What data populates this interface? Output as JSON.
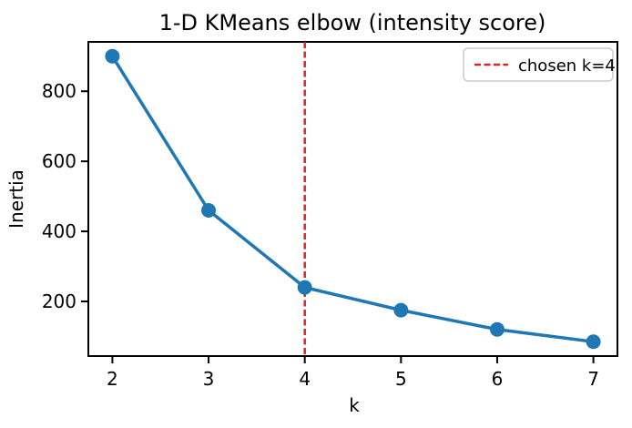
{
  "figure": {
    "background": "#ffffff",
    "spine_color": "#000000",
    "text_color": "#000000",
    "legend_border_color": "#cccccc",
    "legend_background": "#ffffff"
  },
  "chart_data": {
    "type": "line",
    "title": "1-D KMeans elbow (intensity score)",
    "xlabel": "k",
    "ylabel": "Inertia",
    "x": [
      2,
      3,
      4,
      5,
      6,
      7
    ],
    "series": [
      {
        "name": "inertia",
        "values": [
          900,
          460,
          240,
          175,
          120,
          85
        ],
        "color": "#1f77b4",
        "marker": "circle",
        "marker_size": 8,
        "line_width": 3.5
      }
    ],
    "xticks": [
      2,
      3,
      4,
      5,
      6,
      7
    ],
    "yticks": [
      200,
      400,
      600,
      800
    ],
    "xlim": [
      1.75,
      7.25
    ],
    "ylim": [
      44,
      941
    ],
    "grid": false,
    "legend_position": "upper right",
    "vline": {
      "x": 4,
      "color": "#d62728",
      "style": "dashed",
      "label": "chosen k=4"
    },
    "legend": {
      "entries": [
        {
          "label": "chosen k=4",
          "color": "#d62728",
          "style": "dashed"
        }
      ]
    }
  }
}
